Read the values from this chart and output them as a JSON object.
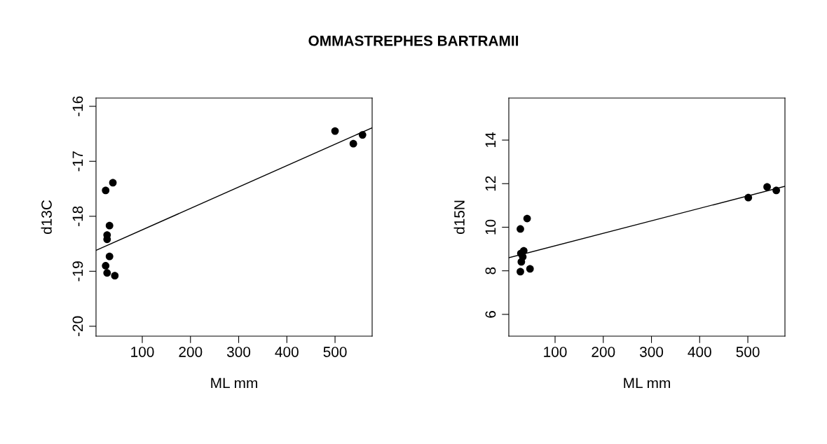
{
  "chart_data": [
    {
      "type": "scatter",
      "title": "OMMASTREPHES BARTRAMII",
      "xlabel": "ML mm",
      "ylabel": "d13C",
      "xlim": [
        4,
        577
      ],
      "ylim": [
        -20.18,
        -15.85
      ],
      "xticks": [
        100,
        200,
        300,
        400,
        500
      ],
      "yticks": [
        -20,
        -19,
        -18,
        -17,
        -16
      ],
      "grid": false,
      "series": [
        {
          "color": "#000000",
          "marker": "circle",
          "x": [
            39,
            24,
            32,
            27,
            27,
            32,
            27,
            24,
            27,
            43,
            500,
            557,
            538
          ],
          "values": [
            -17.39,
            -17.53,
            -18.17,
            -18.34,
            -18.42,
            -18.73,
            null,
            -18.9,
            -19.03,
            -19.08,
            -16.45,
            -16.52,
            -16.68
          ]
        },
        {
          "type": "line",
          "marker": "none",
          "color": "#000000",
          "x": [
            4,
            577
          ],
          "values": [
            -18.62,
            -16.39
          ]
        }
      ]
    },
    {
      "type": "scatter",
      "xlabel": "ML mm",
      "ylabel": "d15N",
      "xlim": [
        4,
        577
      ],
      "ylim": [
        5.0,
        15.93
      ],
      "xticks": [
        100,
        200,
        300,
        400,
        500
      ],
      "yticks": [
        6,
        8,
        10,
        12,
        14
      ],
      "grid": false,
      "series": [
        {
          "color": "#000000",
          "marker": "circle",
          "x": [
            42,
            28,
            35,
            29,
            30,
            48,
            28,
            33,
            501,
            540,
            559
          ],
          "values": [
            10.4,
            9.92,
            8.92,
            8.8,
            8.41,
            8.09,
            7.96,
            8.64,
            11.36,
            11.85,
            11.69
          ]
        },
        {
          "type": "line",
          "marker": "none",
          "color": "#000000",
          "x": [
            4,
            577
          ],
          "values": [
            8.6,
            11.88
          ]
        }
      ]
    }
  ]
}
